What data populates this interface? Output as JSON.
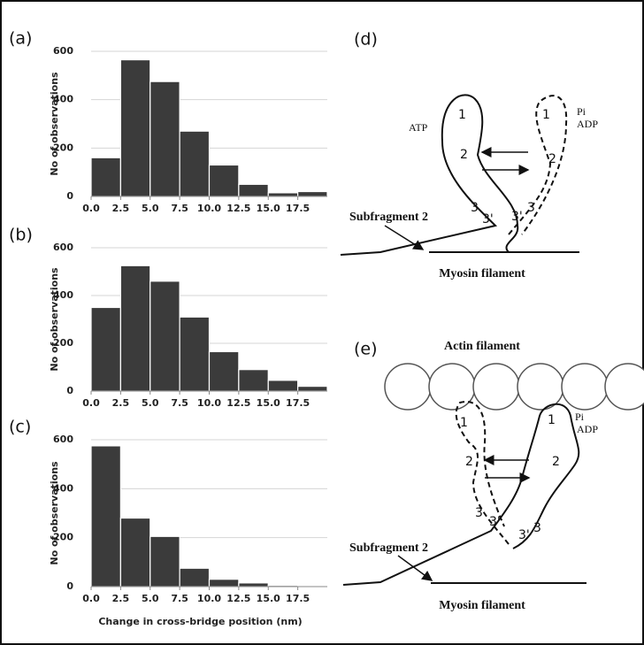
{
  "chart_data": [
    {
      "type": "histogram",
      "label": "(a)",
      "ylabel": "No of observations",
      "bins": [
        0,
        2.5,
        5,
        7.5,
        10,
        12.5,
        15,
        17.5,
        20
      ],
      "values": [
        160,
        565,
        475,
        270,
        130,
        50,
        15,
        20
      ],
      "color": "#3b3b3b",
      "xlim": [
        0,
        20
      ],
      "ylim": [
        0,
        600
      ],
      "xticks": [
        {
          "value": 0,
          "label": "0.0"
        },
        2.5,
        {
          "value": 5,
          "label": "5.0"
        },
        7.5,
        {
          "value": 10,
          "label": "10.0"
        },
        12.5,
        {
          "value": 15,
          "label": "15.0"
        },
        17.5
      ],
      "yticks": [
        0,
        200,
        400,
        600
      ],
      "grid": true
    },
    {
      "type": "histogram",
      "label": "(b)",
      "ylabel": "No of observations",
      "bins": [
        0,
        2.5,
        5,
        7.5,
        10,
        12.5,
        15,
        17.5,
        20
      ],
      "values": [
        350,
        525,
        460,
        310,
        165,
        90,
        45,
        20
      ],
      "color": "#3b3b3b",
      "xlim": [
        0,
        20
      ],
      "ylim": [
        0,
        600
      ],
      "xticks": [
        {
          "value": 0,
          "label": "0.0"
        },
        2.5,
        {
          "value": 5,
          "label": "5.0"
        },
        7.5,
        {
          "value": 10,
          "label": "10.0"
        },
        12.5,
        {
          "value": 15,
          "label": "15.0"
        },
        17.5
      ],
      "yticks": [
        0,
        200,
        400,
        600
      ],
      "grid": true
    },
    {
      "type": "histogram",
      "label": "(c)",
      "ylabel": "No of observations",
      "xlabel": "Change in cross-bridge position (nm)",
      "bins": [
        0,
        2.5,
        5,
        7.5,
        10,
        12.5,
        15,
        17.5,
        20
      ],
      "values": [
        575,
        280,
        205,
        75,
        30,
        15,
        5,
        0
      ],
      "color": "#3b3b3b",
      "xlim": [
        0,
        20
      ],
      "ylim": [
        0,
        600
      ],
      "xticks": [
        {
          "value": 0,
          "label": "0.0"
        },
        2.5,
        {
          "value": 5,
          "label": "5.0"
        },
        7.5,
        {
          "value": 10,
          "label": "10.0"
        },
        12.5,
        {
          "value": 15,
          "label": "15.0"
        },
        17.5
      ],
      "yticks": [
        0,
        200,
        400,
        600
      ],
      "grid": true
    }
  ],
  "diagrams": [
    {
      "label": "(d)",
      "texts": [
        "ATP",
        "Pi",
        "ADP",
        "Subfragment 2",
        "Myosin filament"
      ],
      "sites": [
        "1",
        "2",
        "3",
        "3'",
        "1",
        "2",
        "3'",
        "3"
      ]
    },
    {
      "label": "(e)",
      "texts": [
        "Actin filament",
        "Pi",
        "ADP",
        "Subfragment 2",
        "Myosin filament"
      ],
      "sites": [
        "1",
        "2",
        "3",
        "3'",
        "1",
        "2",
        "3'",
        "3"
      ]
    }
  ]
}
